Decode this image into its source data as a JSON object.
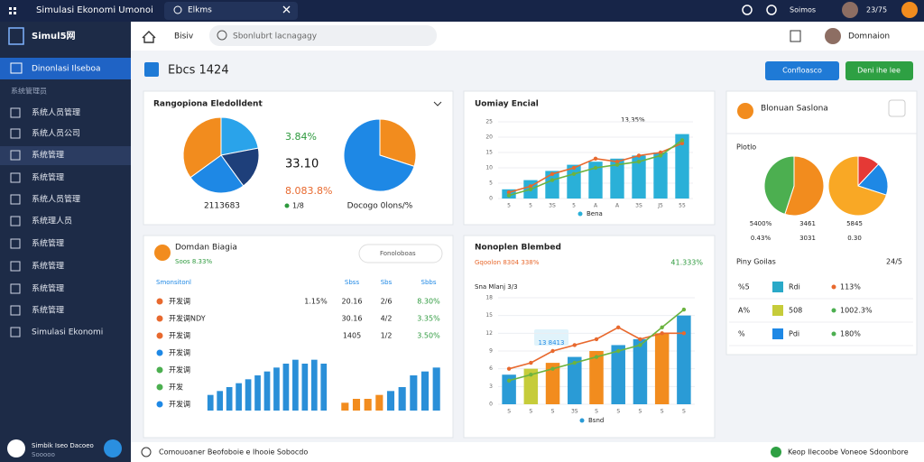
{
  "topbar": {
    "title": "Simulasi Ekonomi Umonoi",
    "tab": "Elkms",
    "user": "Soimos",
    "time": "23/75"
  },
  "sidebar": {
    "brand": "Simul5网",
    "active": "Dinonlasi Ilseboa",
    "section": "系统管理员",
    "items": [
      "系统人员管理",
      "系统人员公司",
      "系统管理",
      "系统管理",
      "系统人员管理",
      "系统理人员",
      "系统管理",
      "系统管理",
      "系统管理",
      "系统管理",
      "Simulasi Ekonomi"
    ],
    "user": "Simbik Iseo Dacoeo",
    "user_sub": "Sooooo"
  },
  "header": {
    "breadcrumb": "Bisiv",
    "search": "Sbonlubrt lacnagagy",
    "user": "Domnaion"
  },
  "page": {
    "title": "Ebcs 1424",
    "buttons": [
      "Confloasco",
      "Deni ihe lee"
    ]
  },
  "cards": [
    {
      "title": "Rangopiona Eledolldent",
      "pie_a": {
        "values": [
          22,
          18,
          25,
          35
        ],
        "colors": [
          "#2aa3ea",
          "#1e3f7a",
          "#1e88e5",
          "#f28c1e"
        ]
      },
      "stats": [
        "3.84%",
        "33.10",
        "8.083.8%"
      ],
      "stat_colors": [
        "#2e9a3e",
        "#111111",
        "#e8692e"
      ],
      "captions": [
        "2113683",
        "Docogo 0lons/%"
      ],
      "badge": "1/8",
      "pie_b": {
        "values": [
          30,
          70
        ],
        "colors": [
          "#f28c1e",
          "#1e88e5"
        ]
      }
    },
    {
      "title": "Uomiay Encial",
      "annotation": "13,35%",
      "legend": "Bena",
      "chart": {
        "categories": [
          "5",
          "5",
          "3S",
          "5",
          "A",
          "A",
          "3S",
          "J5",
          "55"
        ],
        "values": [
          3,
          6,
          9,
          11,
          12,
          13,
          14,
          15,
          21
        ],
        "color": "#2ab0d8",
        "lines": [
          {
            "color": "#e8692e",
            "values": [
              2,
              4,
              8,
              10,
              13,
              12,
              14,
              15,
              18
            ]
          },
          {
            "color": "#6cb33f",
            "values": [
              1,
              3,
              6,
              8,
              10,
              11,
              12,
              14,
              19
            ]
          }
        ],
        "ylim": [
          0,
          25
        ],
        "yticks": [
          0,
          5,
          10,
          15,
          20,
          25
        ]
      }
    },
    {
      "title": "Blonuan Saslona",
      "subtitle": "Plotlo",
      "pie_c": {
        "values": [
          55,
          45
        ],
        "colors": [
          "#f28c1e",
          "#4caf50"
        ]
      },
      "pie_d": {
        "values": [
          12,
          18,
          70
        ],
        "colors": [
          "#e53935",
          "#1e88e5",
          "#f9a825"
        ]
      },
      "legend": [
        "5400%",
        "3461",
        "5845",
        "0.43%",
        "3031",
        "0.30"
      ],
      "table_title": "Piny Goilas",
      "table_date": "24/5",
      "rows": [
        {
          "code": "%5",
          "swatch": "#2aa9c8",
          "name": "Rdi",
          "dot": "#e8692e",
          "value": "113%"
        },
        {
          "code": "A%",
          "swatch": "#c6cc3a",
          "name": "508",
          "dot": "#4caf50",
          "value": "1002.3%"
        },
        {
          "code": "%",
          "swatch": "#1e88e5",
          "name": "Pdi",
          "dot": "#4caf50",
          "value": "180%"
        }
      ]
    },
    {
      "title": "Domdan Biagia",
      "subtitle": "Soos 8.33%",
      "search": "Fonoloboas",
      "columns": [
        "Smonsitonl",
        "Sbss",
        "Sbs",
        "Sbbs"
      ],
      "rows": [
        {
          "dot": "#e8692e",
          "name": "开发调",
          "cells": [
            "1.15%",
            "20.16",
            "2/6",
            "8.30%"
          ]
        },
        {
          "dot": "#e8692e",
          "name": "开发调NDY",
          "cells": [
            "30.16",
            "4/2",
            "3.35%"
          ]
        },
        {
          "dot": "#e8692e",
          "name": "开发调",
          "cells": [
            "1405",
            "1/2",
            "3.50%"
          ]
        },
        {
          "dot": "#1e88e5",
          "name": "开发调"
        },
        {
          "dot": "#4caf50",
          "name": "开发调"
        },
        {
          "dot": "#4caf50",
          "name": "开发"
        },
        {
          "dot": "#1e88e5",
          "name": "开发调"
        }
      ],
      "bars_a": {
        "color": "#2a8fd8",
        "values": [
          4,
          5,
          6,
          7,
          8,
          9,
          10,
          11,
          12,
          13,
          12,
          13,
          12
        ],
        "ylim": [
          0,
          15
        ]
      },
      "bars_b": {
        "colors": [
          "#f28c1e",
          "#f28c1e",
          "#f28c1e",
          "#f28c1e",
          "#2a8fd8",
          "#2a8fd8",
          "#2a8fd8",
          "#2a8fd8",
          "#2a8fd8"
        ],
        "values": [
          2,
          3,
          3,
          4,
          5,
          6,
          9,
          10,
          11
        ],
        "ylim": [
          0,
          15
        ]
      }
    },
    {
      "title": "Nonoplen Blembed",
      "subtitle": "Gqoolon 8304 338%",
      "value": "41.333%",
      "note": "Sna Mlanj 3/3",
      "annotation": "13 8413",
      "legend": "Bsnd",
      "chart": {
        "categories": [
          "S",
          "S",
          "S",
          "3S",
          "S",
          "S",
          "S",
          "S",
          "S"
        ],
        "values": [
          5,
          6,
          7,
          8,
          9,
          10,
          11,
          12,
          15
        ],
        "colors": [
          "#2a9bd6",
          "#c6cc3a",
          "#f28c1e",
          "#2a9bd6",
          "#f28c1e",
          "#2a9bd6",
          "#2a9bd6",
          "#f28c1e",
          "#2a9bd6"
        ],
        "lines": [
          {
            "color": "#e8692e",
            "values": [
              6,
              7,
              9,
              10,
              11,
              13,
              11,
              12,
              12
            ]
          },
          {
            "color": "#6cb33f",
            "values": [
              4,
              5,
              6,
              7,
              8,
              9,
              10,
              13,
              16
            ]
          }
        ],
        "ylim": [
          0,
          18
        ],
        "yticks": [
          0,
          3,
          6,
          9,
          12,
          15,
          18
        ]
      }
    }
  ],
  "footer": {
    "left": "Comouoaner Beofoboie e Ihooie Sobocdo",
    "right": "Keop Ilecoobe Voneoe Sdoonbore"
  }
}
